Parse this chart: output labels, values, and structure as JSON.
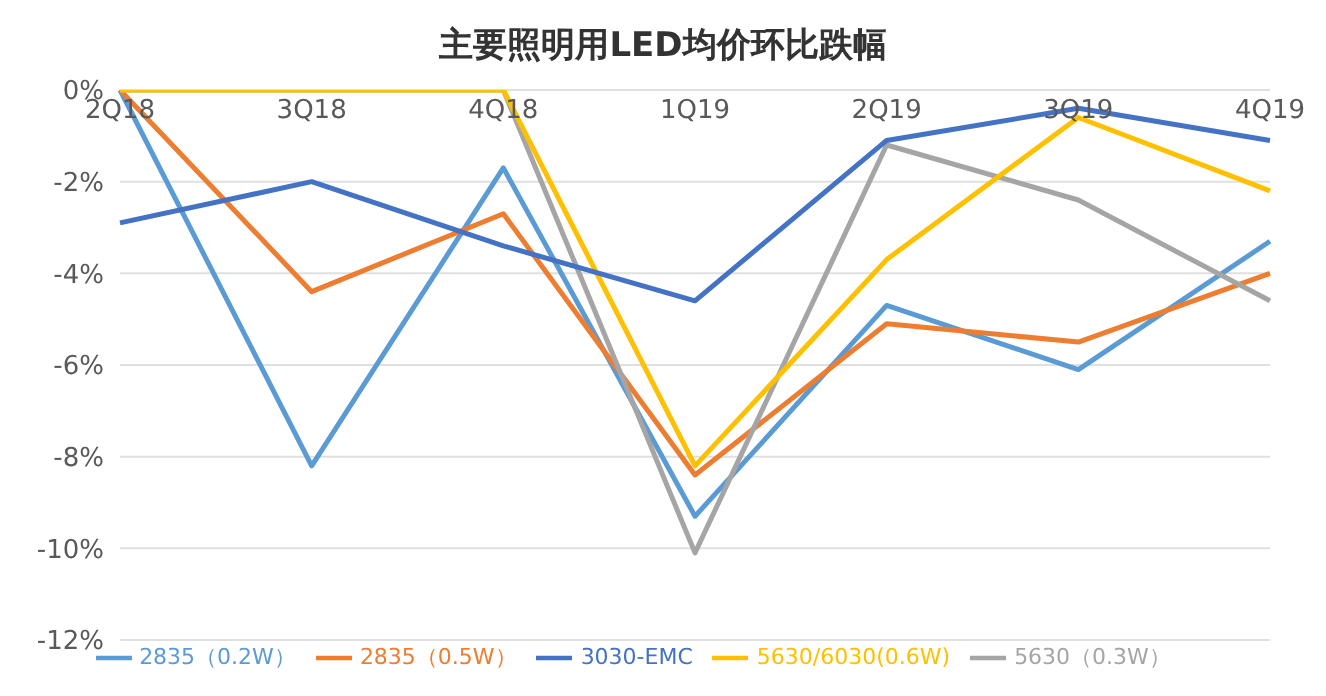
{
  "chart_data": {
    "type": "line",
    "title": "主要照明用LED均价环比跌幅",
    "categories": [
      "2Q18",
      "3Q18",
      "4Q18",
      "1Q19",
      "2Q19",
      "3Q19",
      "4Q19"
    ],
    "series": [
      {
        "name": "2835（0.2W）",
        "color": "#5b9bd5",
        "values": [
          0,
          -8.2,
          -1.7,
          -9.3,
          -4.7,
          -6.1,
          -3.3
        ]
      },
      {
        "name": "2835（0.5W）",
        "color": "#ed7d31",
        "values": [
          0,
          -4.4,
          -2.7,
          -8.4,
          -5.1,
          -5.5,
          -4.0
        ]
      },
      {
        "name": "5630（0.3W）",
        "color": "#a5a5a5",
        "values": [
          0,
          0,
          0,
          -10.1,
          -1.2,
          -2.4,
          -4.6
        ]
      },
      {
        "name": "5630/6030(0.6W)",
        "color": "#ffc000",
        "values": [
          0,
          0,
          0,
          -8.2,
          -3.7,
          -0.6,
          -2.2
        ]
      },
      {
        "name": "3030-EMC",
        "color": "#4472c4",
        "values": [
          -2.9,
          -2.0,
          -3.4,
          -4.6,
          -1.1,
          -0.4,
          -1.1
        ]
      }
    ],
    "ylim": [
      -12,
      0
    ],
    "yticks": [
      {
        "value": -12,
        "label": "-12%"
      },
      {
        "value": -10,
        "label": "-10%"
      },
      {
        "value": -8,
        "label": "-8%"
      },
      {
        "value": -6,
        "label": "-6%"
      },
      {
        "value": -4,
        "label": "-4%"
      },
      {
        "value": -2,
        "label": "-2%"
      },
      {
        "value": 0,
        "label": "0%"
      }
    ],
    "grid": "y",
    "legend": "bottom",
    "marker": "none",
    "line_style": "solid"
  }
}
